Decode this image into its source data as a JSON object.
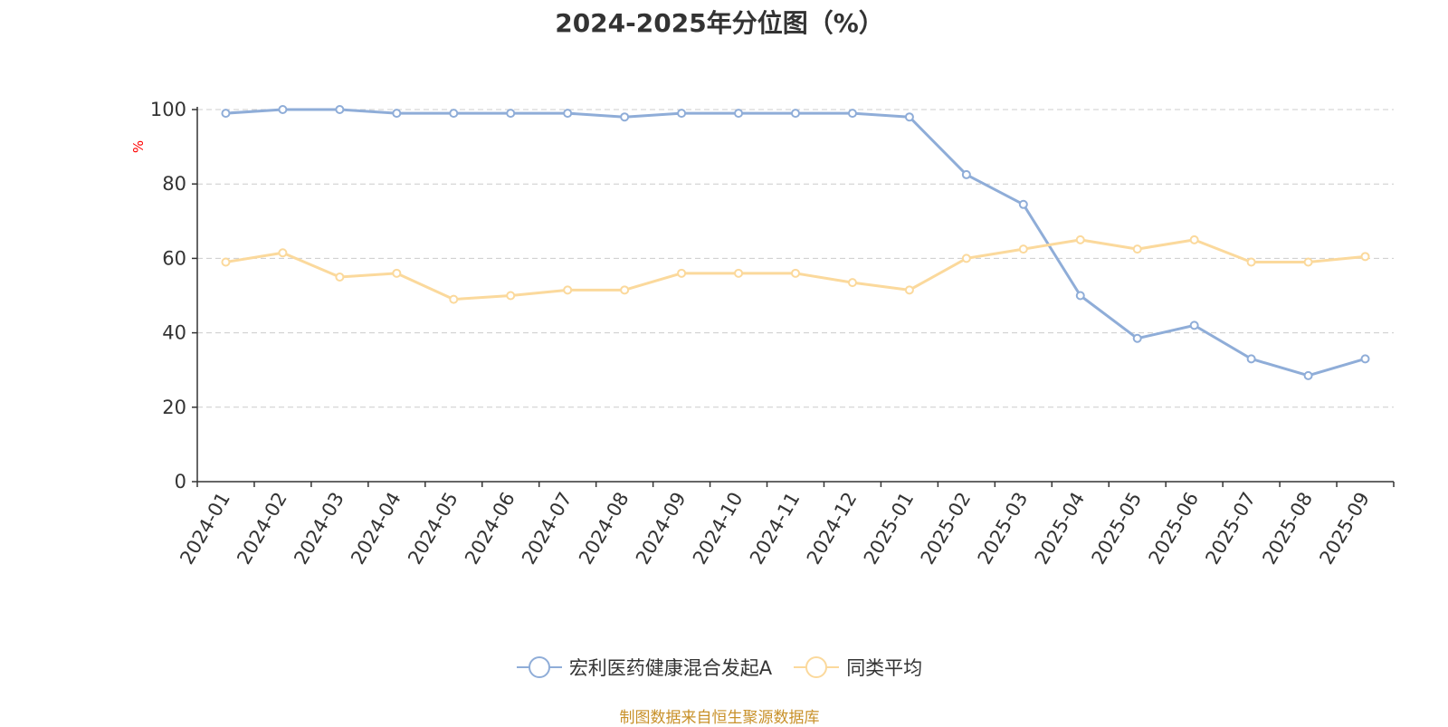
{
  "chart_data": {
    "type": "line",
    "title": "2024-2025年分位图（%）",
    "ylabel": "%",
    "xlabel": "",
    "ylim": [
      0,
      100
    ],
    "yticks": [
      0,
      20,
      40,
      60,
      80,
      100
    ],
    "grid": "horizontal dashed",
    "legend_position": "bottom",
    "categories": [
      "2024-01",
      "2024-02",
      "2024-03",
      "2024-04",
      "2024-05",
      "2024-06",
      "2024-07",
      "2024-08",
      "2024-09",
      "2024-10",
      "2024-11",
      "2024-12",
      "2025-01",
      "2025-02",
      "2025-03",
      "2025-04",
      "2025-05",
      "2025-06",
      "2025-07",
      "2025-08",
      "2025-09"
    ],
    "series": [
      {
        "name": "宏利医药健康混合发起A",
        "color": "#8fadd8",
        "values": [
          99,
          100,
          100,
          99,
          99,
          99,
          99,
          98,
          99,
          99,
          99,
          99,
          98,
          82.5,
          74.5,
          50,
          38.5,
          42,
          33,
          28.5,
          33
        ]
      },
      {
        "name": "同类平均",
        "color": "#fbd99c",
        "values": [
          59,
          61.5,
          55,
          56,
          49,
          50,
          51.5,
          51.5,
          56,
          56,
          56,
          53.5,
          51.5,
          60,
          62.5,
          65,
          62.5,
          65,
          59,
          59,
          60.5
        ]
      }
    ]
  },
  "source_note": "制图数据来自恒生聚源数据库",
  "colors": {
    "axis": "#333333",
    "grid": "#cccccc",
    "unit_label": "#ff0000",
    "source": "#c8912a"
  }
}
